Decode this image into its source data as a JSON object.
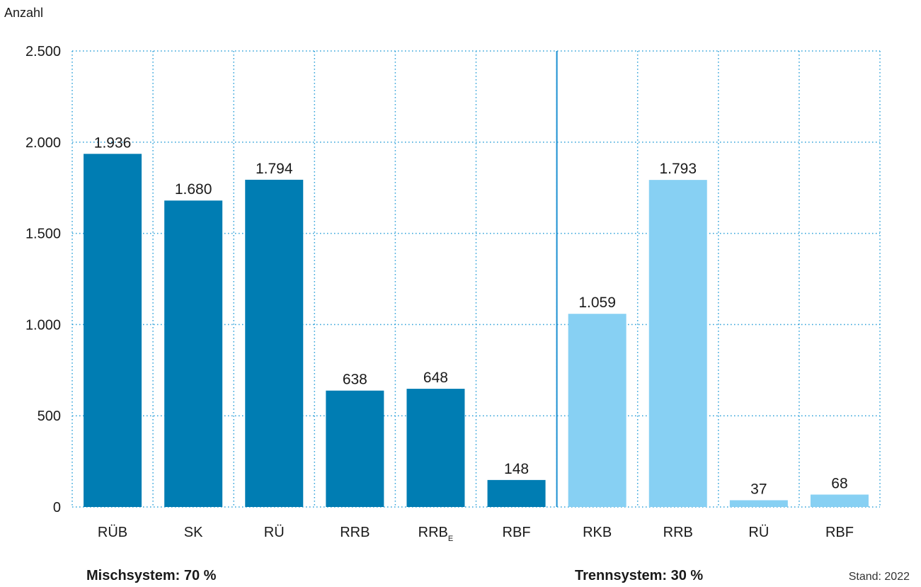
{
  "chart_data": {
    "type": "bar",
    "ylabel": "Anzahl",
    "ylim": [
      0,
      2500
    ],
    "yticks": [
      0,
      500,
      1000,
      1500,
      2000,
      2500
    ],
    "ytick_labels": [
      "0",
      "500",
      "1.000",
      "1.500",
      "2.000",
      "2.500"
    ],
    "grid": true,
    "groups": [
      {
        "name": "Mischsystem: 70 %",
        "color": "#007db3",
        "bars": [
          {
            "category": "RÜB",
            "value": 1936,
            "label": "1.936"
          },
          {
            "category": "SK",
            "value": 1680,
            "label": "1.680"
          },
          {
            "category": "RÜ",
            "value": 1794,
            "label": "1.794"
          },
          {
            "category": "RRB",
            "value": 638,
            "label": "638"
          },
          {
            "category": "RRB",
            "subscript": "E",
            "value": 648,
            "label": "648"
          },
          {
            "category": "RBF",
            "value": 148,
            "label": "148"
          }
        ]
      },
      {
        "name": "Trennsystem: 30 %",
        "color": "#87d0f3",
        "bars": [
          {
            "category": "RKB",
            "value": 1059,
            "label": "1.059"
          },
          {
            "category": "RRB",
            "value": 1793,
            "label": "1.793"
          },
          {
            "category": "RÜ",
            "value": 37,
            "label": "37"
          },
          {
            "category": "RBF",
            "value": 68,
            "label": "68"
          }
        ]
      }
    ],
    "divider_color": "#1a8fd1",
    "grid_color": "#2a9fd8"
  },
  "footer": {
    "stand": "Stand: 2022"
  }
}
